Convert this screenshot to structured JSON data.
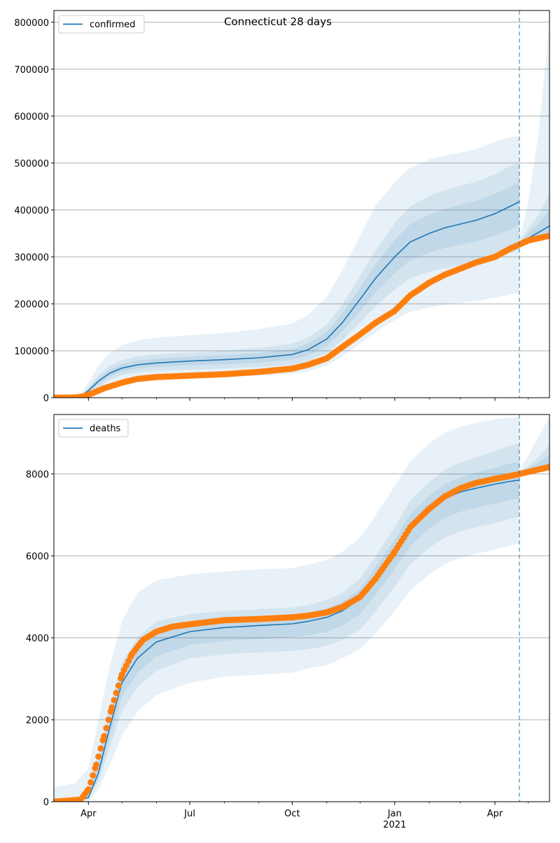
{
  "title": "Connecticut 28 days",
  "colors": {
    "model": "#1f77b4",
    "observed": "#ff7f0e",
    "grid": "#b0b0b0"
  },
  "chart_data": [
    {
      "type": "line",
      "legend": "confirmed",
      "legend_position": "upper-left",
      "grid": "y",
      "xlim": [
        "2020-03-01",
        "2021-05-20"
      ],
      "ylim": [
        0,
        825000
      ],
      "yticks": [
        0,
        100000,
        200000,
        300000,
        400000,
        500000,
        600000,
        700000,
        800000
      ],
      "forecast_start": "2021-04-23",
      "model": {
        "x": [
          "2020-03-01",
          "2020-03-15",
          "2020-03-25",
          "2020-04-01",
          "2020-04-10",
          "2020-04-20",
          "2020-05-01",
          "2020-05-15",
          "2020-06-01",
          "2020-07-01",
          "2020-08-01",
          "2020-09-01",
          "2020-10-01",
          "2020-10-15",
          "2020-11-01",
          "2020-11-15",
          "2020-12-01",
          "2020-12-15",
          "2021-01-01",
          "2021-01-15",
          "2021-02-01",
          "2021-02-15",
          "2021-03-01",
          "2021-03-15",
          "2021-04-01",
          "2021-04-15",
          "2021-04-23"
        ],
        "mid": [
          0,
          0,
          3000,
          15000,
          35000,
          52000,
          63000,
          70000,
          74000,
          78000,
          81000,
          85000,
          92000,
          102000,
          125000,
          160000,
          210000,
          255000,
          300000,
          332000,
          350000,
          362000,
          370000,
          378000,
          392000,
          408000,
          418000
        ],
        "band_inner": [
          [
            0,
            0
          ],
          [
            0,
            0
          ],
          [
            1000,
            5000
          ],
          [
            8000,
            22000
          ],
          [
            22000,
            48000
          ],
          [
            38000,
            68000
          ],
          [
            48000,
            80000
          ],
          [
            54000,
            88000
          ],
          [
            57000,
            92000
          ],
          [
            60000,
            96000
          ],
          [
            62000,
            100000
          ],
          [
            65000,
            106000
          ],
          [
            70000,
            115000
          ],
          [
            78000,
            128000
          ],
          [
            95000,
            156000
          ],
          [
            122000,
            198000
          ],
          [
            160000,
            260000
          ],
          [
            195000,
            315000
          ],
          [
            230000,
            372000
          ],
          [
            255000,
            408000
          ],
          [
            268000,
            430000
          ],
          [
            276000,
            442000
          ],
          [
            282000,
            452000
          ],
          [
            288000,
            460000
          ],
          [
            298000,
            476000
          ],
          [
            308000,
            494000
          ],
          [
            315000,
            500000
          ]
        ],
        "band_outer": [
          [
            0,
            0
          ],
          [
            0,
            0
          ],
          [
            500,
            7000
          ],
          [
            5000,
            32000
          ],
          [
            15000,
            68000
          ],
          [
            27000,
            95000
          ],
          [
            35000,
            112000
          ],
          [
            39000,
            122000
          ],
          [
            41000,
            128000
          ],
          [
            43000,
            133000
          ],
          [
            45000,
            138000
          ],
          [
            47000,
            146000
          ],
          [
            51000,
            158000
          ],
          [
            56000,
            176000
          ],
          [
            68000,
            215000
          ],
          [
            88000,
            272000
          ],
          [
            115000,
            345000
          ],
          [
            140000,
            410000
          ],
          [
            165000,
            460000
          ],
          [
            183000,
            490000
          ],
          [
            192000,
            508000
          ],
          [
            198000,
            516000
          ],
          [
            202000,
            522000
          ],
          [
            206000,
            530000
          ],
          [
            213000,
            545000
          ],
          [
            220000,
            555000
          ],
          [
            225000,
            556000
          ]
        ]
      },
      "forecast": {
        "x": [
          "2021-04-23",
          "2021-05-01",
          "2021-05-10",
          "2021-05-20"
        ],
        "mid": [
          330000,
          340000,
          352000,
          366000
        ],
        "band_inner": [
          [
            327000,
            333000
          ],
          [
            332000,
            360000
          ],
          [
            336000,
            390000
          ],
          [
            340000,
            435000
          ]
        ],
        "band_outer": [
          [
            325000,
            336000
          ],
          [
            330000,
            420000
          ],
          [
            334000,
            560000
          ],
          [
            338000,
            800000
          ]
        ]
      },
      "observed": {
        "x": [
          "2020-03-01",
          "2020-03-20",
          "2020-03-28",
          "2020-04-05",
          "2020-04-15",
          "2020-05-01",
          "2020-05-15",
          "2020-06-01",
          "2020-07-01",
          "2020-08-01",
          "2020-09-01",
          "2020-10-01",
          "2020-10-15",
          "2020-11-01",
          "2020-11-15",
          "2020-12-01",
          "2020-12-15",
          "2021-01-01",
          "2021-01-15",
          "2021-02-01",
          "2021-02-15",
          "2021-03-01",
          "2021-03-15",
          "2021-04-01",
          "2021-04-15",
          "2021-05-01",
          "2021-05-20"
        ],
        "y": [
          0,
          300,
          3000,
          10000,
          20000,
          32000,
          40000,
          44000,
          47000,
          50000,
          55000,
          62000,
          70000,
          84000,
          108000,
          135000,
          160000,
          185000,
          218000,
          245000,
          262000,
          275000,
          288000,
          300000,
          318000,
          335000,
          345000
        ]
      }
    },
    {
      "type": "line",
      "legend": "deaths",
      "legend_position": "upper-left",
      "grid": "y",
      "xlim": [
        "2020-03-01",
        "2021-05-20"
      ],
      "ylim": [
        0,
        9450
      ],
      "yticks": [
        0,
        2000,
        4000,
        6000,
        8000
      ],
      "xticks": [
        "Apr",
        "Jul",
        "Oct",
        "Jan",
        "Apr"
      ],
      "xtick_year": "2021",
      "forecast_start": "2021-04-23",
      "model": {
        "x": [
          "2020-03-01",
          "2020-03-20",
          "2020-04-01",
          "2020-04-10",
          "2020-04-20",
          "2020-05-01",
          "2020-05-15",
          "2020-06-01",
          "2020-07-01",
          "2020-08-01",
          "2020-09-01",
          "2020-10-01",
          "2020-10-15",
          "2020-11-01",
          "2020-11-15",
          "2020-12-01",
          "2020-12-15",
          "2021-01-01",
          "2021-01-15",
          "2021-02-01",
          "2021-02-15",
          "2021-03-01",
          "2021-03-15",
          "2021-04-01",
          "2021-04-15",
          "2021-04-23"
        ],
        "mid": [
          10,
          30,
          100,
          700,
          1800,
          2900,
          3500,
          3900,
          4150,
          4250,
          4300,
          4340,
          4400,
          4500,
          4660,
          4950,
          5450,
          6100,
          6700,
          7150,
          7400,
          7560,
          7650,
          7750,
          7820,
          7850
        ],
        "band_inner": [
          [
            0,
            30
          ],
          [
            0,
            80
          ],
          [
            50,
            250
          ],
          [
            500,
            1200
          ],
          [
            1300,
            2300
          ],
          [
            2200,
            3400
          ],
          [
            2800,
            4000
          ],
          [
            3200,
            4400
          ],
          [
            3500,
            4580
          ],
          [
            3600,
            4650
          ],
          [
            3640,
            4700
          ],
          [
            3680,
            4740
          ],
          [
            3720,
            4800
          ],
          [
            3800,
            4920
          ],
          [
            3950,
            5100
          ],
          [
            4200,
            5450
          ],
          [
            4650,
            6000
          ],
          [
            5250,
            6700
          ],
          [
            5800,
            7350
          ],
          [
            6200,
            7800
          ],
          [
            6450,
            8100
          ],
          [
            6600,
            8280
          ],
          [
            6700,
            8400
          ],
          [
            6800,
            8550
          ],
          [
            6900,
            8700
          ],
          [
            6950,
            8750
          ]
        ],
        "band_outer": [
          [
            0,
            350
          ],
          [
            0,
            450
          ],
          [
            0,
            800
          ],
          [
            300,
            2000
          ],
          [
            900,
            3300
          ],
          [
            1600,
            4400
          ],
          [
            2200,
            5100
          ],
          [
            2600,
            5400
          ],
          [
            2900,
            5550
          ],
          [
            3050,
            5620
          ],
          [
            3100,
            5670
          ],
          [
            3150,
            5700
          ],
          [
            3250,
            5780
          ],
          [
            3330,
            5900
          ],
          [
            3500,
            6100
          ],
          [
            3720,
            6450
          ],
          [
            4100,
            7000
          ],
          [
            4650,
            7700
          ],
          [
            5150,
            8300
          ],
          [
            5550,
            8750
          ],
          [
            5800,
            9000
          ],
          [
            5950,
            9150
          ],
          [
            6050,
            9250
          ],
          [
            6150,
            9330
          ],
          [
            6250,
            9380
          ],
          [
            6300,
            9400
          ]
        ]
      },
      "forecast": {
        "x": [
          "2021-04-23",
          "2021-05-01",
          "2021-05-10",
          "2021-05-20"
        ],
        "mid": [
          8020,
          8080,
          8150,
          8230
        ],
        "band_inner": [
          [
            7990,
            8050
          ],
          [
            8020,
            8200
          ],
          [
            8050,
            8400
          ],
          [
            8080,
            8700
          ]
        ],
        "band_outer": [
          [
            7980,
            8080
          ],
          [
            8000,
            8450
          ],
          [
            8030,
            8900
          ],
          [
            8060,
            9400
          ]
        ]
      },
      "observed": {
        "x": [
          "2020-03-01",
          "2020-03-25",
          "2020-04-01",
          "2020-04-08",
          "2020-04-15",
          "2020-04-22",
          "2020-05-01",
          "2020-05-10",
          "2020-05-20",
          "2020-06-01",
          "2020-06-15",
          "2020-07-01",
          "2020-08-01",
          "2020-09-01",
          "2020-10-01",
          "2020-10-15",
          "2020-11-01",
          "2020-11-15",
          "2020-12-01",
          "2020-12-15",
          "2021-01-01",
          "2021-01-15",
          "2021-02-01",
          "2021-02-15",
          "2021-03-01",
          "2021-03-15",
          "2021-04-01",
          "2021-04-15",
          "2021-05-01",
          "2021-05-20"
        ],
        "y": [
          0,
          50,
          300,
          900,
          1600,
          2300,
          3100,
          3600,
          3950,
          4150,
          4270,
          4330,
          4430,
          4460,
          4500,
          4540,
          4620,
          4750,
          5000,
          5450,
          6100,
          6700,
          7150,
          7450,
          7650,
          7780,
          7880,
          7950,
          8050,
          8170
        ]
      }
    }
  ]
}
